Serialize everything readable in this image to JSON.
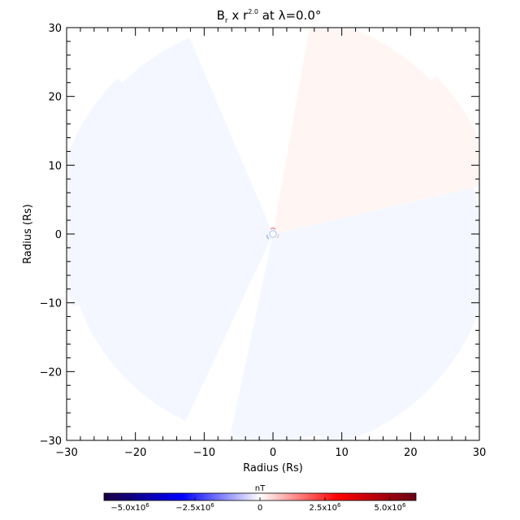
{
  "chart_data": {
    "type": "heatmap",
    "title": {
      "base": "B",
      "sub": "r",
      "middle": " x r",
      "sup": "2.0",
      "end": " at λ=0.0°"
    },
    "xlabel": "Radius (Rs)",
    "ylabel": "Radius (Rs)",
    "xlim": [
      -30,
      30
    ],
    "ylim": [
      -30,
      30
    ],
    "x_ticks": [
      "−30",
      "−20",
      "−10",
      "0",
      "10",
      "20",
      "30"
    ],
    "y_ticks": [
      "−30",
      "−20",
      "−10",
      "0",
      "10",
      "20",
      "30"
    ],
    "colorbar": {
      "label": "nT",
      "range": [
        -6000000.0,
        6000000.0
      ],
      "ticks": [
        {
          "value": -5000000.0,
          "mant": "−5.0x10",
          "exp": "6"
        },
        {
          "value": -2500000.0,
          "mant": "−2.5x10",
          "exp": "6"
        },
        {
          "value": 0,
          "mant": "0",
          "exp": ""
        },
        {
          "value": 2500000.0,
          "mant": "2.5x10",
          "exp": "6"
        },
        {
          "value": 5000000.0,
          "mant": "5.0x10",
          "exp": "6"
        }
      ],
      "colors": [
        "#1a0040",
        "#0000ff",
        "#ffffff",
        "#ff0000",
        "#6b0014"
      ]
    },
    "sectors": [
      {
        "angle_start": -3,
        "angle_end": 13,
        "r_max": 30,
        "sign": "negative"
      },
      {
        "angle_start": 13,
        "angle_end": 44,
        "r_max": 33,
        "sign": "positive"
      },
      {
        "angle_start": 44,
        "angle_end": 80,
        "r_max": 32,
        "sign": "positive"
      },
      {
        "angle_start": 113,
        "angle_end": 135,
        "r_max": 31,
        "sign": "negative"
      },
      {
        "angle_start": 135,
        "angle_end": 172,
        "r_max": 32,
        "sign": "negative"
      },
      {
        "angle_start": 172,
        "angle_end": 200,
        "r_max": 31,
        "sign": "negative"
      },
      {
        "angle_start": 200,
        "angle_end": 220,
        "r_max": 30,
        "sign": "negative"
      },
      {
        "angle_start": 220,
        "angle_end": 245,
        "r_max": 30,
        "sign": "negative"
      },
      {
        "angle_start": 258,
        "angle_end": 283,
        "r_max": 30,
        "sign": "negative"
      },
      {
        "angle_start": 283,
        "angle_end": 315,
        "r_max": 32,
        "sign": "negative"
      },
      {
        "angle_start": 315,
        "angle_end": 357,
        "r_max": 32,
        "sign": "negative"
      }
    ]
  }
}
